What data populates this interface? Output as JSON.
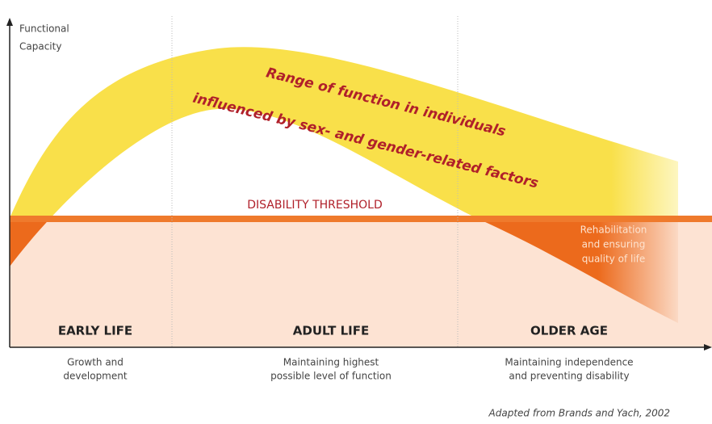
{
  "y_axis_label": [
    "Functional",
    "Capacity"
  ],
  "band_label": [
    "Range of function in individuals",
    "influenced by sex- and gender-related factors"
  ],
  "threshold_label": "DISABILITY THRESHOLD",
  "rehab_label": [
    "Rehabilitation",
    "and ensuring",
    "quality of life"
  ],
  "stages": [
    {
      "title": "EARLY LIFE",
      "caption": [
        "Growth and",
        "development"
      ]
    },
    {
      "title": "ADULT LIFE",
      "caption": [
        "Maintaining highest",
        "possible level of function"
      ]
    },
    {
      "title": "OLDER AGE",
      "caption": [
        "Maintaining independence",
        "and preventing disability"
      ]
    }
  ],
  "source": "Adapted from Brands and Yach, 2002"
}
